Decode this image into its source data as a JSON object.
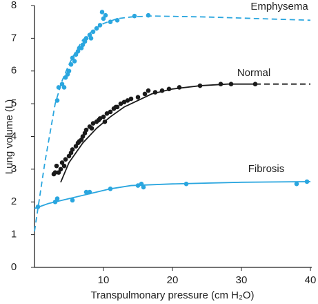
{
  "chart_data": {
    "type": "scatter",
    "x_label": "Transpulmonary pressure (cm H₂O)",
    "y_label": "Lung volume (L)",
    "xlim": [
      0,
      40
    ],
    "ylim": [
      0,
      8
    ],
    "xticks": [
      10,
      20,
      30,
      40
    ],
    "yticks": [
      0,
      1,
      2,
      3,
      4,
      5,
      6,
      7,
      8
    ],
    "series": [
      {
        "name": "Emphysema",
        "color": "#2aa6df",
        "line_style": "dashed",
        "line_x": [
          0,
          1.5,
          3,
          4,
          5,
          6,
          7,
          8.5,
          10,
          12,
          14,
          17,
          25,
          40
        ],
        "line_y": [
          1.1,
          3.2,
          5.0,
          5.7,
          6.2,
          6.6,
          6.95,
          7.25,
          7.45,
          7.6,
          7.65,
          7.68,
          7.65,
          7.55
        ],
        "points_x": [
          3.3,
          3.5,
          4,
          4.3,
          4.5,
          4.8,
          5,
          5.3,
          5.5,
          5.8,
          6,
          6.3,
          6.5,
          6.8,
          7,
          7.3,
          7.5,
          8,
          8.2,
          8.5,
          9,
          9.5,
          9.8,
          10,
          10.3,
          11,
          12,
          14.5,
          16.5
        ],
        "points_y": [
          5.1,
          5.5,
          5.6,
          5.5,
          5.8,
          5.9,
          6.0,
          6.2,
          6.4,
          6.3,
          6.5,
          6.6,
          6.7,
          6.7,
          6.8,
          6.9,
          7.0,
          7.1,
          7.0,
          7.2,
          7.3,
          7.4,
          7.8,
          7.6,
          7.7,
          7.5,
          7.55,
          7.68,
          7.7
        ]
      },
      {
        "name": "Normal",
        "color": "#1a1a1a",
        "line_style": "solid",
        "line_x": [
          3.8,
          5,
          7,
          9,
          11,
          13,
          15,
          17,
          20,
          24,
          28,
          32
        ],
        "line_y": [
          2.6,
          3.2,
          3.8,
          4.25,
          4.6,
          4.9,
          5.1,
          5.3,
          5.45,
          5.55,
          5.6,
          5.6
        ],
        "extension_x": [
          32,
          40
        ],
        "extension_y": [
          5.6,
          5.6
        ],
        "points_x": [
          2.8,
          3,
          3.2,
          3.5,
          3.8,
          4,
          4.3,
          4.5,
          5,
          5.3,
          5.5,
          6,
          6.3,
          6.5,
          6.8,
          7,
          7.3,
          7.5,
          8,
          8.3,
          8.5,
          9,
          9.3,
          9.5,
          10,
          10.2,
          10.5,
          11,
          11.5,
          11.8,
          12,
          12.5,
          13,
          13.5,
          14,
          15,
          16,
          16.5,
          17.5,
          18.5,
          19.5,
          21,
          24,
          27,
          28.5,
          32
        ],
        "points_y": [
          2.85,
          2.9,
          3.1,
          2.9,
          3.0,
          3.2,
          3.1,
          3.3,
          3.4,
          3.5,
          3.6,
          3.7,
          3.8,
          3.85,
          3.9,
          4.0,
          4.1,
          4.2,
          4.3,
          4.25,
          4.4,
          4.45,
          4.5,
          4.55,
          4.6,
          4.45,
          4.7,
          4.75,
          4.85,
          4.9,
          4.9,
          5.0,
          5.05,
          5.1,
          5.15,
          5.2,
          5.3,
          5.4,
          5.35,
          5.4,
          5.45,
          5.5,
          5.55,
          5.6,
          5.6,
          5.6
        ]
      },
      {
        "name": "Fibrosis",
        "color": "#2aa6df",
        "line_style": "solid",
        "line_x": [
          0,
          2,
          5,
          8,
          11,
          14,
          20,
          30,
          40
        ],
        "line_y": [
          1.8,
          1.95,
          2.1,
          2.25,
          2.4,
          2.5,
          2.55,
          2.6,
          2.62
        ],
        "points_x": [
          0.5,
          3,
          3.3,
          5.5,
          7.5,
          8,
          11,
          15,
          15.5,
          15.8,
          22,
          38,
          39.5
        ],
        "points_y": [
          1.85,
          2.0,
          2.1,
          2.05,
          2.3,
          2.3,
          2.4,
          2.5,
          2.55,
          2.45,
          2.55,
          2.55,
          2.62
        ]
      }
    ]
  }
}
